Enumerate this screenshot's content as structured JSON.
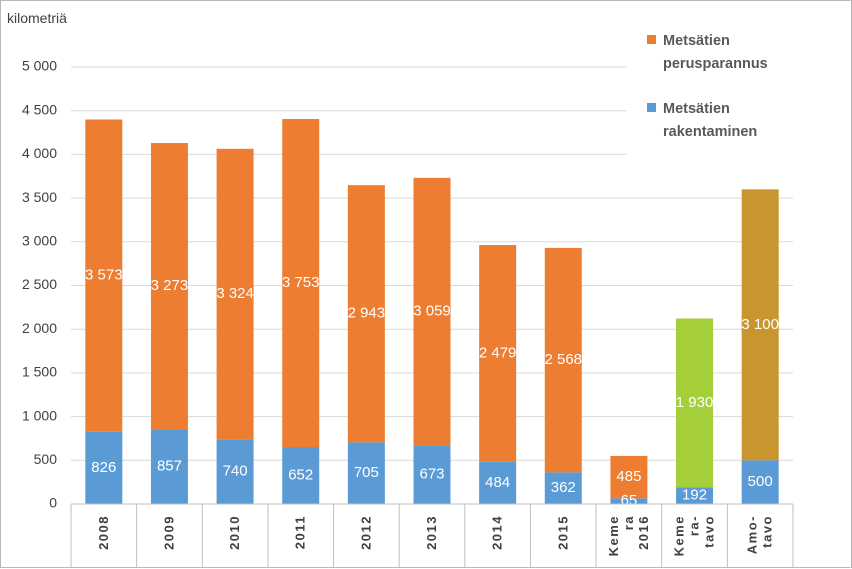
{
  "chart_data": {
    "type": "bar",
    "stacked": true,
    "unit_label": "kilometriä",
    "ylim": [
      0,
      5000
    ],
    "yticks": [
      "0",
      "500",
      "1 000",
      "1 500",
      "2 000",
      "2 500",
      "3 000",
      "3 500",
      "4 000",
      "4 500",
      "5 000"
    ],
    "grid": true,
    "legend_position": "top-right",
    "categories": [
      {
        "key": "2008",
        "label_lines": [
          "2008"
        ]
      },
      {
        "key": "2009",
        "label_lines": [
          "2009"
        ]
      },
      {
        "key": "2010",
        "label_lines": [
          "2010"
        ]
      },
      {
        "key": "2011",
        "label_lines": [
          "2011"
        ]
      },
      {
        "key": "2012",
        "label_lines": [
          "2012"
        ]
      },
      {
        "key": "2013",
        "label_lines": [
          "2013"
        ]
      },
      {
        "key": "2014",
        "label_lines": [
          "2014"
        ]
      },
      {
        "key": "2015",
        "label_lines": [
          "2015"
        ]
      },
      {
        "key": "Kemera 2016",
        "label_lines": [
          "Keme",
          "ra",
          "2016"
        ]
      },
      {
        "key": "Kemera-tavo",
        "label_lines": [
          "Keme",
          "ra-",
          "tavo"
        ]
      },
      {
        "key": "Amo-tavo",
        "label_lines": [
          "Amo-",
          "tavo"
        ]
      }
    ],
    "series": [
      {
        "name": "Metsätien rakentaminen",
        "legend_lines": [
          "Metsätien",
          "rakentaminen"
        ],
        "color": "#5b9bd5",
        "values": [
          826,
          857,
          740,
          652,
          705,
          673,
          484,
          362,
          65,
          192,
          500
        ],
        "labels": [
          "826",
          "857",
          "740",
          "652",
          "705",
          "673",
          "484",
          "362",
          "65",
          "192",
          "500"
        ]
      },
      {
        "name": "Metsätien perusparannus",
        "legend_lines": [
          "Metsätien",
          "perusparannus"
        ],
        "color": "#ed7d31",
        "point_colors": [
          "#ed7d31",
          "#ed7d31",
          "#ed7d31",
          "#ed7d31",
          "#ed7d31",
          "#ed7d31",
          "#ed7d31",
          "#ed7d31",
          "#ed7d31",
          "#a5cf3a",
          "#c8952e"
        ],
        "values": [
          3573,
          3273,
          3324,
          3753,
          2943,
          3059,
          2479,
          2568,
          485,
          1930,
          3100
        ],
        "labels": [
          "3 573",
          "3 273",
          "3 324",
          "3 753",
          "2 943",
          "3 059",
          "2 479",
          "2 568",
          "485",
          "1 930",
          "3 100"
        ]
      }
    ]
  }
}
